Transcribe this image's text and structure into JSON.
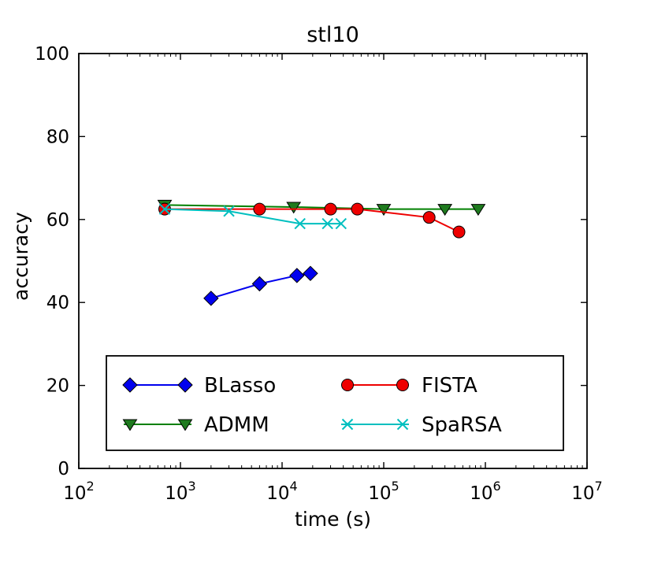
{
  "chart_data": {
    "type": "line",
    "title": "stl10",
    "xlabel": "time (s)",
    "ylabel": "accuracy",
    "x_scale": "log",
    "xlim": [
      100,
      10000000
    ],
    "ylim": [
      0,
      100
    ],
    "xticks_exponents": [
      2,
      3,
      4,
      5,
      6,
      7
    ],
    "yticks": [
      0,
      20,
      40,
      60,
      80,
      100
    ],
    "grid": false,
    "legend_position": "lower left",
    "legend_columns": 2,
    "axis_color": "#000000",
    "series": [
      {
        "name": "BLasso",
        "color": "#0000ee",
        "marker": "diamond",
        "x": [
          2000,
          6000,
          14000,
          19000
        ],
        "y": [
          41,
          44.5,
          46.5,
          47
        ]
      },
      {
        "name": "ADMM",
        "color": "#008000",
        "marker": "triangle-down",
        "marker_fill": "#1e7b1e",
        "x": [
          700,
          13000,
          100000,
          400000,
          850000
        ],
        "y": [
          63.5,
          63,
          62.5,
          62.5,
          62.5
        ]
      },
      {
        "name": "FISTA",
        "color": "#ee0000",
        "marker": "circle",
        "x": [
          700,
          6000,
          30000,
          55000,
          280000,
          550000
        ],
        "y": [
          62.5,
          62.5,
          62.5,
          62.5,
          60.5,
          57
        ]
      },
      {
        "name": "SpaRSA",
        "color": "#00bfbf",
        "marker": "x",
        "x": [
          700,
          3000,
          15000,
          28000,
          38000
        ],
        "y": [
          62.5,
          62,
          59,
          59,
          59
        ]
      }
    ]
  }
}
